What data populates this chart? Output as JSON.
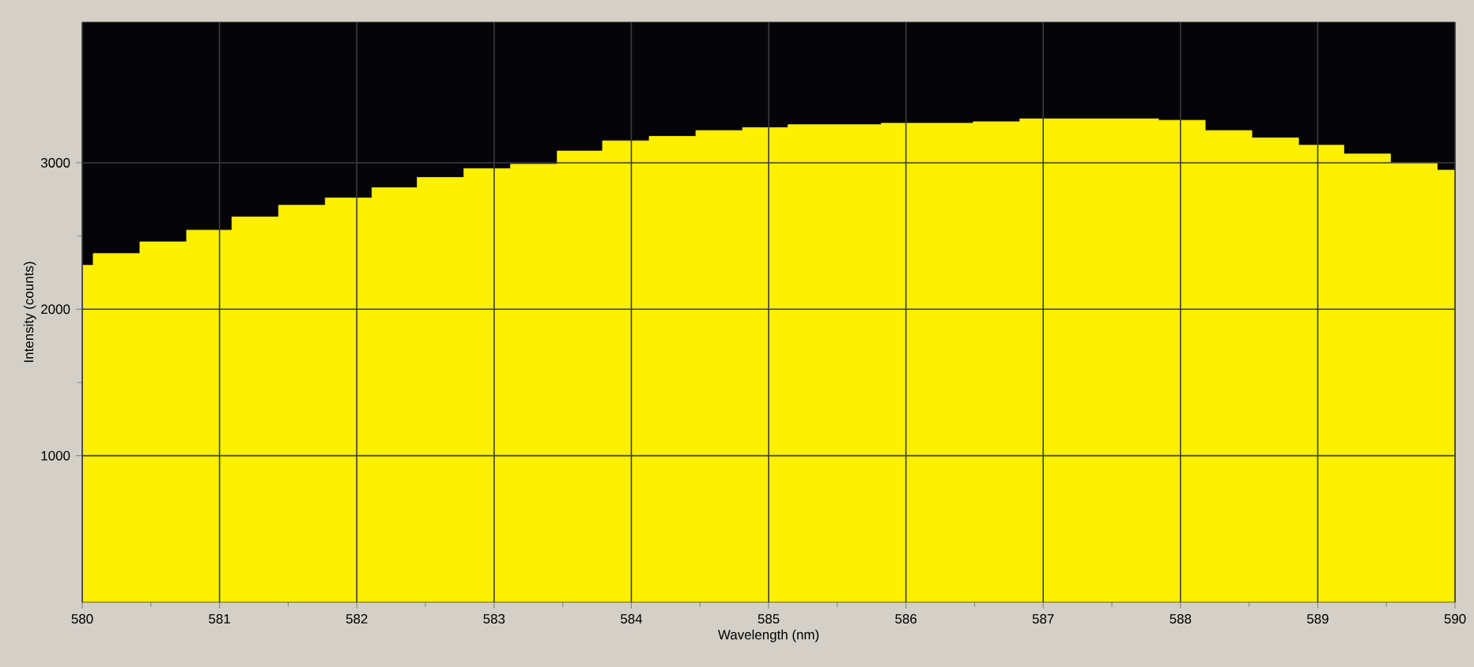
{
  "chart_data": {
    "type": "area",
    "xlabel": "Wavelength (nm)",
    "ylabel": "Intensity (counts)",
    "x": [
      580,
      580.08,
      580.08,
      580.42,
      580.42,
      580.76,
      580.76,
      581.09,
      581.09,
      581.43,
      581.43,
      581.77,
      581.77,
      582.11,
      582.11,
      582.44,
      582.44,
      582.78,
      582.78,
      583.12,
      583.12,
      583.46,
      583.46,
      583.79,
      583.79,
      584.13,
      584.13,
      584.47,
      584.47,
      584.81,
      584.81,
      585.14,
      585.14,
      585.48,
      585.48,
      585.82,
      585.82,
      586.16,
      586.16,
      586.49,
      586.49,
      586.83,
      586.83,
      587.17,
      587.17,
      587.51,
      587.51,
      587.84,
      587.84,
      588.18,
      588.18,
      588.52,
      588.52,
      588.86,
      588.86,
      589.19,
      589.19,
      589.53,
      589.53,
      589.87,
      589.87,
      590
    ],
    "values": [
      2300,
      2300,
      2380,
      2380,
      2460,
      2460,
      2540,
      2540,
      2630,
      2630,
      2710,
      2710,
      2760,
      2760,
      2830,
      2830,
      2900,
      2900,
      2960,
      2960,
      2990,
      2990,
      3080,
      3080,
      3150,
      3150,
      3180,
      3180,
      3220,
      3220,
      3240,
      3240,
      3260,
      3260,
      3260,
      3260,
      3270,
      3270,
      3270,
      3270,
      3280,
      3280,
      3300,
      3300,
      3300,
      3300,
      3300,
      3300,
      3290,
      3290,
      3220,
      3220,
      3170,
      3170,
      3120,
      3120,
      3060,
      3060,
      3000,
      3000,
      2950,
      2950
    ],
    "color": "#fdf000",
    "xlim": [
      580,
      590
    ],
    "ylim": [
      0,
      3960
    ],
    "xticks": [
      580,
      581,
      582,
      583,
      584,
      585,
      586,
      587,
      588,
      589,
      590
    ],
    "yticks": [
      1000,
      2000,
      3000
    ],
    "grid": true
  }
}
